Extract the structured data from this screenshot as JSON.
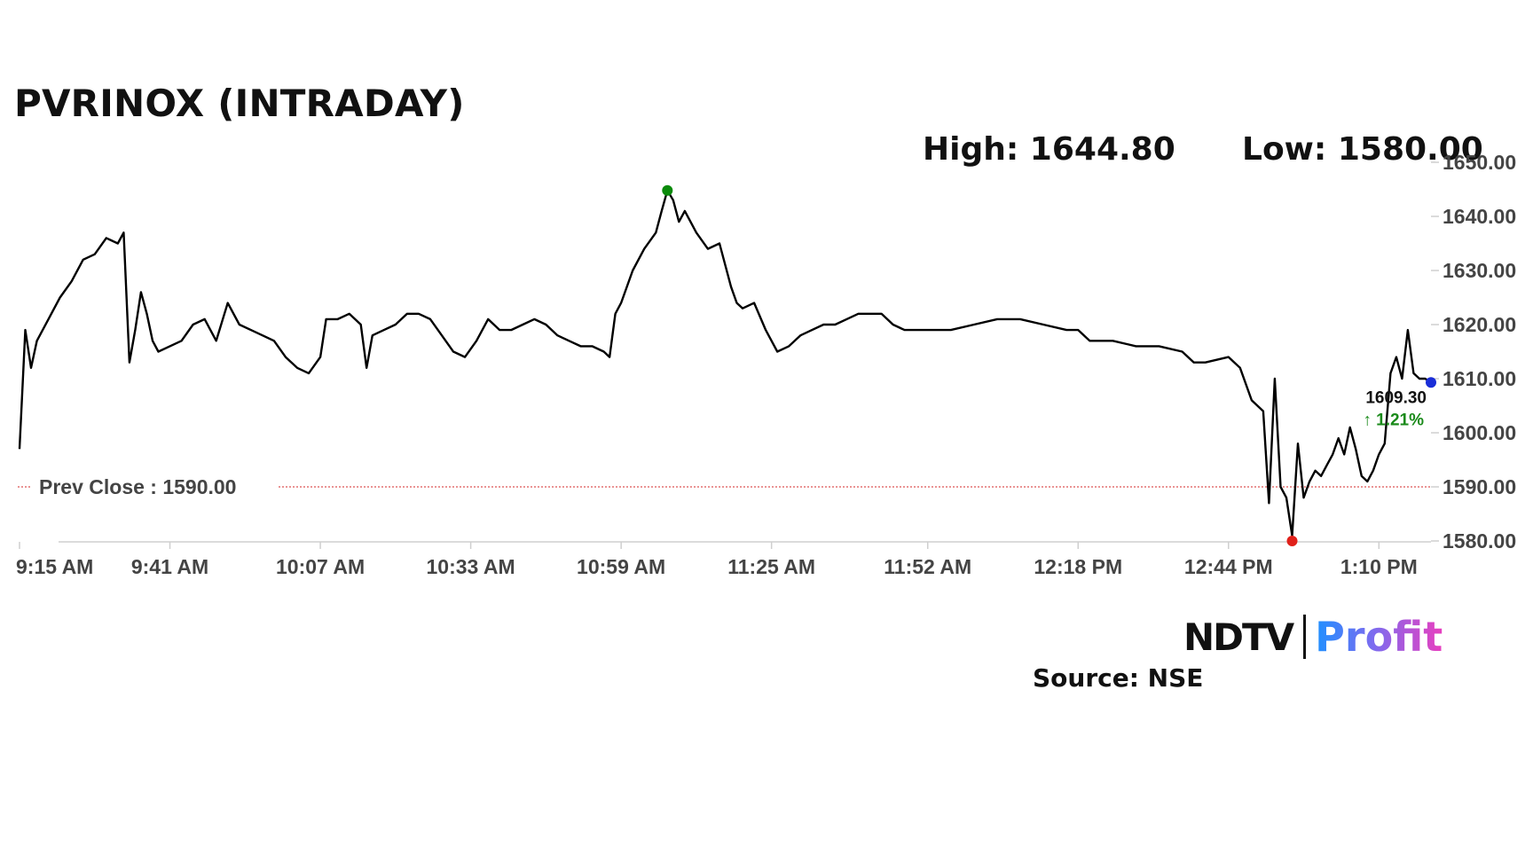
{
  "title": "PVRINOX (INTRADAY)",
  "high_text": "High: 1644.80",
  "low_text": "Low: 1580.00",
  "prev_close_text": "Prev Close : 1590.00",
  "last_price_text": "1609.30",
  "change_text": "↑ 1.21%",
  "logo": {
    "brand": "NDTV",
    "product": "Profit"
  },
  "source": "Source: NSE",
  "colors": {
    "line": "#000000",
    "high_marker": "#0a8a0a",
    "low_marker": "#e0201a",
    "last_marker": "#1a2ed8",
    "prev_close_line": "#d42a2a",
    "change_up": "#1a8a1a"
  },
  "chart_data": {
    "type": "line",
    "title": "PVRINOX (INTRADAY)",
    "xlabel": "",
    "ylabel": "",
    "ylim": [
      1580,
      1650
    ],
    "yticks": [
      "1580.00",
      "1590.00",
      "1600.00",
      "1610.00",
      "1620.00",
      "1630.00",
      "1640.00",
      "1650.00"
    ],
    "xticks": [
      "9:15 AM",
      "9:41 AM",
      "10:07 AM",
      "10:33 AM",
      "10:59 AM",
      "11:25 AM",
      "11:52 AM",
      "12:18 PM",
      "12:44 PM",
      "1:10 PM"
    ],
    "high": 1644.8,
    "low": 1580.0,
    "prev_close": 1590.0,
    "last": 1609.3,
    "change_pct": 1.21,
    "series": [
      {
        "points": [
          [
            "9:15",
            1597
          ],
          [
            "9:16",
            1619
          ],
          [
            "9:17",
            1612
          ],
          [
            "9:18",
            1617
          ],
          [
            "9:20",
            1621
          ],
          [
            "9:22",
            1625
          ],
          [
            "9:24",
            1628
          ],
          [
            "9:26",
            1632
          ],
          [
            "9:28",
            1633
          ],
          [
            "9:30",
            1636
          ],
          [
            "9:32",
            1635
          ],
          [
            "9:33",
            1637
          ],
          [
            "9:34",
            1613
          ],
          [
            "9:35",
            1619
          ],
          [
            "9:36",
            1626
          ],
          [
            "9:37",
            1622
          ],
          [
            "9:38",
            1617
          ],
          [
            "9:39",
            1615
          ],
          [
            "9:41",
            1616
          ],
          [
            "9:43",
            1617
          ],
          [
            "9:45",
            1620
          ],
          [
            "9:47",
            1621
          ],
          [
            "9:49",
            1617
          ],
          [
            "9:51",
            1624
          ],
          [
            "9:53",
            1620
          ],
          [
            "9:55",
            1619
          ],
          [
            "9:57",
            1618
          ],
          [
            "9:59",
            1617
          ],
          [
            "10:01",
            1614
          ],
          [
            "10:03",
            1612
          ],
          [
            "10:05",
            1611
          ],
          [
            "10:07",
            1614
          ],
          [
            "10:08",
            1621
          ],
          [
            "10:10",
            1621
          ],
          [
            "10:12",
            1622
          ],
          [
            "10:14",
            1620
          ],
          [
            "10:15",
            1612
          ],
          [
            "10:16",
            1618
          ],
          [
            "10:18",
            1619
          ],
          [
            "10:20",
            1620
          ],
          [
            "10:22",
            1622
          ],
          [
            "10:24",
            1622
          ],
          [
            "10:26",
            1621
          ],
          [
            "10:28",
            1618
          ],
          [
            "10:30",
            1615
          ],
          [
            "10:32",
            1614
          ],
          [
            "10:34",
            1617
          ],
          [
            "10:36",
            1621
          ],
          [
            "10:38",
            1619
          ],
          [
            "10:40",
            1619
          ],
          [
            "10:42",
            1620
          ],
          [
            "10:44",
            1621
          ],
          [
            "10:46",
            1620
          ],
          [
            "10:48",
            1618
          ],
          [
            "10:50",
            1617
          ],
          [
            "10:52",
            1616
          ],
          [
            "10:54",
            1616
          ],
          [
            "10:56",
            1615
          ],
          [
            "10:57",
            1614
          ],
          [
            "10:58",
            1622
          ],
          [
            "10:59",
            1624
          ],
          [
            "11:01",
            1630
          ],
          [
            "11:03",
            1634
          ],
          [
            "11:05",
            1637
          ],
          [
            "11:06",
            1641
          ],
          [
            "11:07",
            1644.8
          ],
          [
            "11:08",
            1643
          ],
          [
            "11:09",
            1639
          ],
          [
            "11:10",
            1641
          ],
          [
            "11:12",
            1637
          ],
          [
            "11:14",
            1634
          ],
          [
            "11:16",
            1635
          ],
          [
            "11:18",
            1627
          ],
          [
            "11:19",
            1624
          ],
          [
            "11:20",
            1623
          ],
          [
            "11:22",
            1624
          ],
          [
            "11:24",
            1619
          ],
          [
            "11:26",
            1615
          ],
          [
            "11:28",
            1616
          ],
          [
            "11:30",
            1618
          ],
          [
            "11:32",
            1619
          ],
          [
            "11:34",
            1620
          ],
          [
            "11:36",
            1620
          ],
          [
            "11:38",
            1621
          ],
          [
            "11:40",
            1622
          ],
          [
            "11:42",
            1622
          ],
          [
            "11:44",
            1622
          ],
          [
            "11:46",
            1620
          ],
          [
            "11:48",
            1619
          ],
          [
            "11:50",
            1619
          ],
          [
            "11:52",
            1619
          ],
          [
            "11:56",
            1619
          ],
          [
            "12:00",
            1620
          ],
          [
            "12:04",
            1621
          ],
          [
            "12:08",
            1621
          ],
          [
            "12:12",
            1620
          ],
          [
            "12:16",
            1619
          ],
          [
            "12:18",
            1619
          ],
          [
            "12:20",
            1617
          ],
          [
            "12:24",
            1617
          ],
          [
            "12:28",
            1616
          ],
          [
            "12:32",
            1616
          ],
          [
            "12:36",
            1615
          ],
          [
            "12:38",
            1613
          ],
          [
            "12:40",
            1613
          ],
          [
            "12:44",
            1614
          ],
          [
            "12:46",
            1612
          ],
          [
            "12:48",
            1606
          ],
          [
            "12:50",
            1604
          ],
          [
            "12:51",
            1587
          ],
          [
            "12:52",
            1610
          ],
          [
            "12:53",
            1590
          ],
          [
            "12:54",
            1588
          ],
          [
            "12:55",
            1581
          ],
          [
            "12:56",
            1598
          ],
          [
            "12:57",
            1588
          ],
          [
            "12:58",
            1591
          ],
          [
            "12:59",
            1593
          ],
          [
            "13:00",
            1592
          ],
          [
            "13:01",
            1594
          ],
          [
            "13:02",
            1596
          ],
          [
            "13:03",
            1599
          ],
          [
            "13:04",
            1596
          ],
          [
            "13:05",
            1601
          ],
          [
            "13:06",
            1597
          ],
          [
            "13:07",
            1592
          ],
          [
            "13:08",
            1591
          ],
          [
            "13:09",
            1593
          ],
          [
            "13:10",
            1596
          ],
          [
            "13:11",
            1598
          ],
          [
            "13:12",
            1611
          ],
          [
            "13:13",
            1614
          ],
          [
            "13:14",
            1610
          ],
          [
            "13:15",
            1619
          ],
          [
            "13:16",
            1611
          ],
          [
            "13:17",
            1610
          ],
          [
            "13:18",
            1610
          ],
          [
            "13:19",
            1609.3
          ]
        ]
      }
    ]
  }
}
